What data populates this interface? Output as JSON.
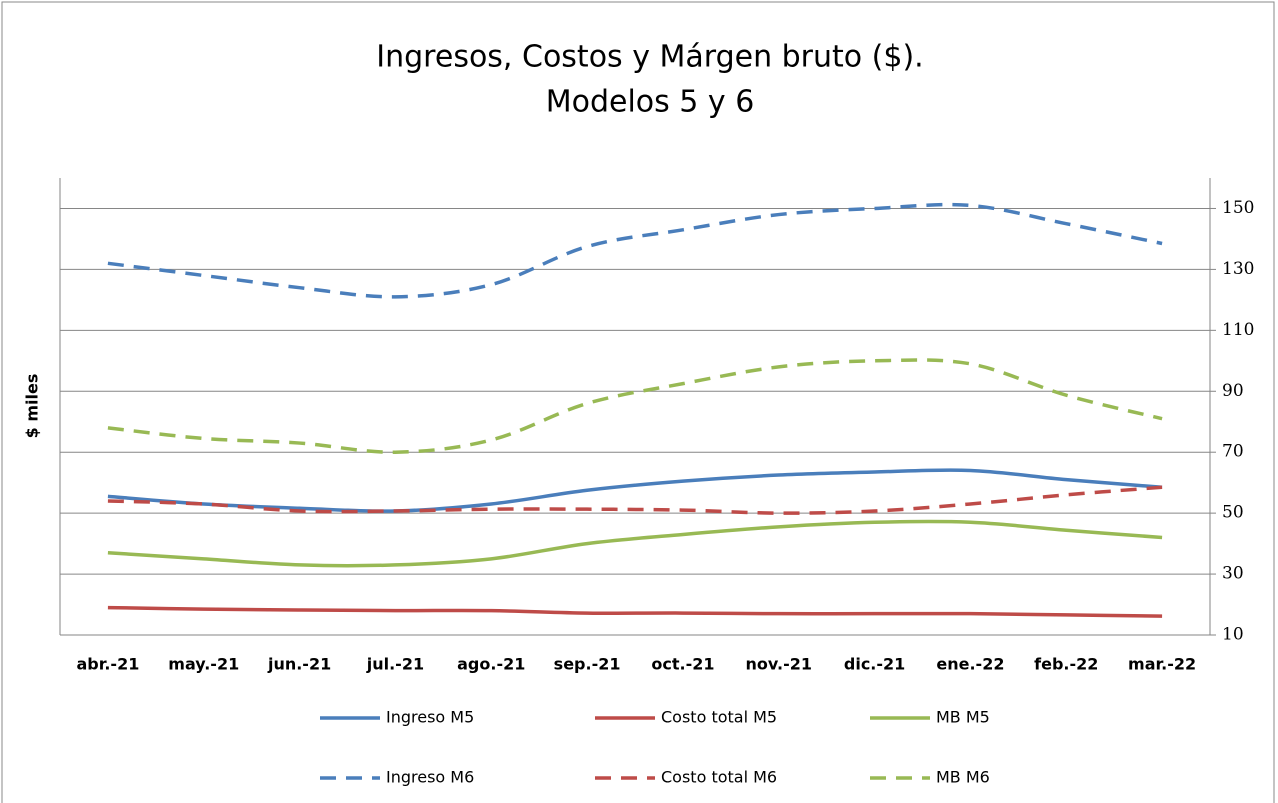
{
  "chart_data": {
    "type": "line",
    "title": "Ingresos, Costos y Márgen bruto ($).",
    "subtitle": "Modelos 5 y 6",
    "y_label": "$ miles",
    "categories": [
      "abr.-21",
      "may.-21",
      "jun.-21",
      "jul.-21",
      "ago.-21",
      "sep.-21",
      "oct.-21",
      "nov.-21",
      "dic.-21",
      "ene.-22",
      "feb.-22",
      "mar.-22"
    ],
    "ylim": [
      10,
      160
    ],
    "yticks": [
      10,
      30,
      50,
      70,
      90,
      110,
      130,
      150
    ],
    "grid": true,
    "y_axis_side": "right",
    "legend": "bottom",
    "series": [
      {
        "name": "Ingreso M5",
        "color": "#4a7ebb",
        "dash": false,
        "values": [
          55.5,
          53,
          51.6,
          50.7,
          53,
          57.5,
          60.5,
          62.5,
          63.5,
          64,
          61,
          58.5
        ]
      },
      {
        "name": "Costo total M5",
        "color": "#be4b48",
        "dash": false,
        "values": [
          19,
          18.5,
          18.2,
          18,
          18,
          17.2,
          17.2,
          17,
          17,
          17,
          16.6,
          16.2
        ]
      },
      {
        "name": "MB M5",
        "color": "#98b954",
        "dash": false,
        "values": [
          37,
          35,
          33,
          33,
          35,
          40,
          43,
          45.5,
          47,
          47,
          44.4,
          42
        ]
      },
      {
        "name": "Ingreso M6",
        "color": "#4a7ebb",
        "dash": true,
        "values": [
          132,
          128,
          124,
          121,
          125,
          137.5,
          143,
          148,
          150,
          151,
          145,
          138.5
        ]
      },
      {
        "name": "Costo total M6",
        "color": "#be4b48",
        "dash": true,
        "values": [
          54,
          53,
          50.7,
          50.7,
          51.3,
          51.3,
          51,
          50,
          50.7,
          53,
          56,
          58.5
        ]
      },
      {
        "name": "MB M6",
        "color": "#98b954",
        "dash": true,
        "values": [
          78,
          74.5,
          73,
          70,
          74,
          86,
          92.5,
          98,
          100,
          99,
          88.7,
          81
        ]
      }
    ]
  }
}
